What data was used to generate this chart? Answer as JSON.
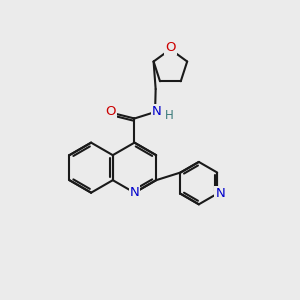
{
  "background_color": "#ebebeb",
  "bond_color": "#1a1a1a",
  "bond_width": 1.5,
  "atom_colors": {
    "N": "#0000cc",
    "O": "#cc0000",
    "H": "#3a7a7a",
    "C": "#1a1a1a"
  },
  "font_size_atom": 9.5,
  "font_size_H": 8.5
}
